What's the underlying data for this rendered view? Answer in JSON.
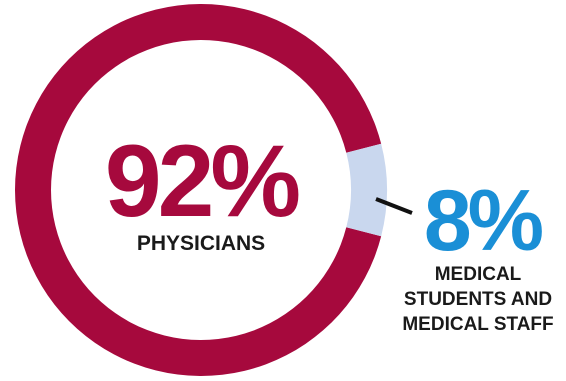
{
  "chart_data": {
    "type": "pie",
    "donut": true,
    "slices": [
      {
        "value": 92,
        "display": "92%",
        "label": "PHYSICIANS",
        "color": "#a6093d"
      },
      {
        "value": 8,
        "display": "8%",
        "label": "MEDICAL STUDENTS AND MEDICAL STAFF",
        "color": "#c9d7ee"
      }
    ]
  },
  "colors": {
    "minor_value_text": "#1a8fd6",
    "connector": "#111111",
    "label_text": "#1a1a1a"
  }
}
